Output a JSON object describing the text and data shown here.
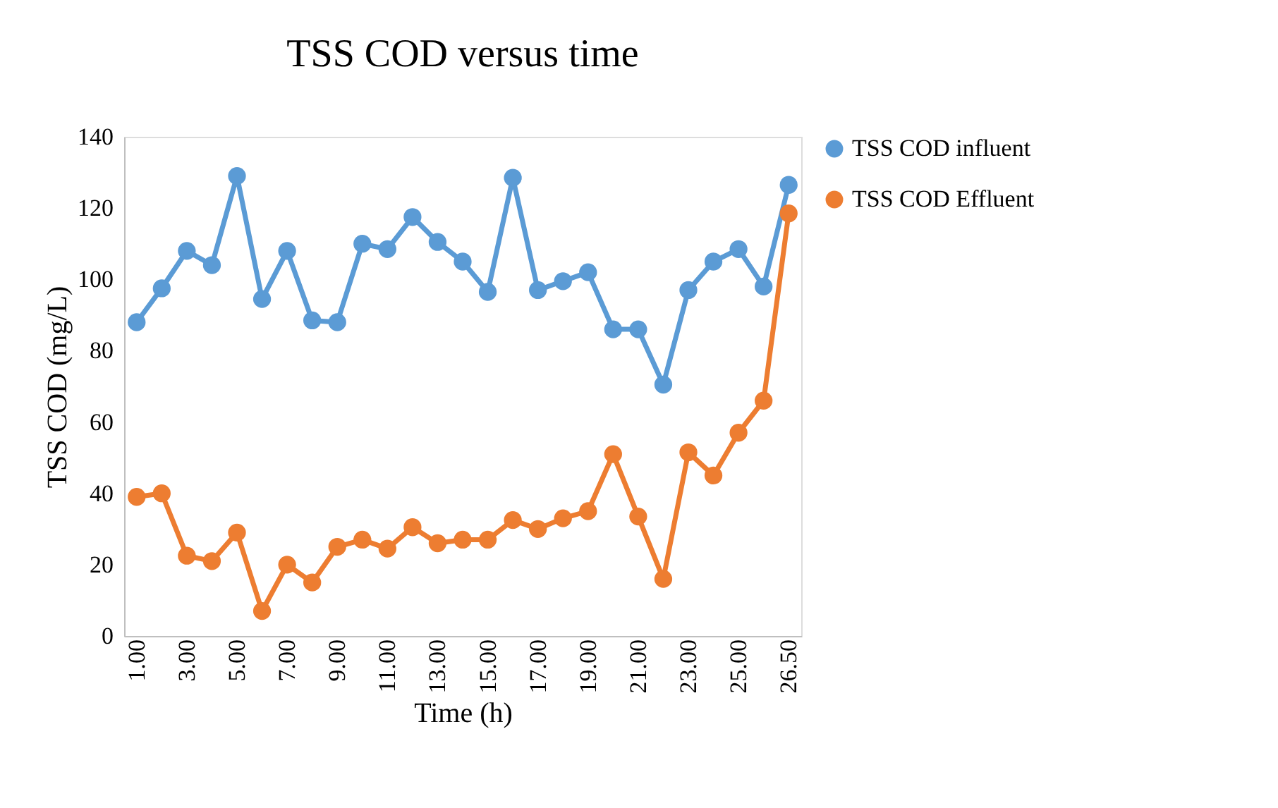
{
  "chart_data": {
    "type": "line",
    "title": "TSS COD versus time",
    "xlabel": "Time (h)",
    "ylabel": "TSS COD (mg/L)",
    "categories": [
      "1.00",
      null,
      "3.00",
      null,
      "5.00",
      null,
      "7.00",
      null,
      "9.00",
      null,
      "11.00",
      null,
      "13.00",
      null,
      "15.00",
      null,
      "17.00",
      null,
      "19.00",
      null,
      "21.00",
      null,
      "23.00",
      null,
      "25.00",
      null,
      "26.50"
    ],
    "series": [
      {
        "name": "TSS COD influent",
        "color": "#5b9bd5",
        "values": [
          88,
          97.5,
          108,
          104,
          129,
          94.5,
          108,
          88.5,
          88,
          110,
          108.5,
          117.5,
          110.5,
          105,
          96.5,
          128.5,
          97,
          99.5,
          102,
          86,
          86,
          70.5,
          97,
          105,
          108.5,
          98,
          126.5
        ]
      },
      {
        "name": "TSS COD Effluent",
        "color": "#ed7d31",
        "values": [
          39,
          40,
          22.5,
          21,
          29,
          7,
          20,
          15,
          25,
          27,
          24.5,
          30.5,
          26,
          27,
          27,
          32.5,
          30,
          33,
          35,
          51,
          33.5,
          16,
          51.5,
          45,
          57,
          66,
          118.5
        ]
      }
    ],
    "ylim": [
      0,
      140
    ],
    "yticks": [
      0,
      20,
      40,
      60,
      80,
      100,
      120,
      140
    ],
    "grid": false,
    "legend": "right",
    "marker": "circle",
    "line_style": "solid"
  }
}
